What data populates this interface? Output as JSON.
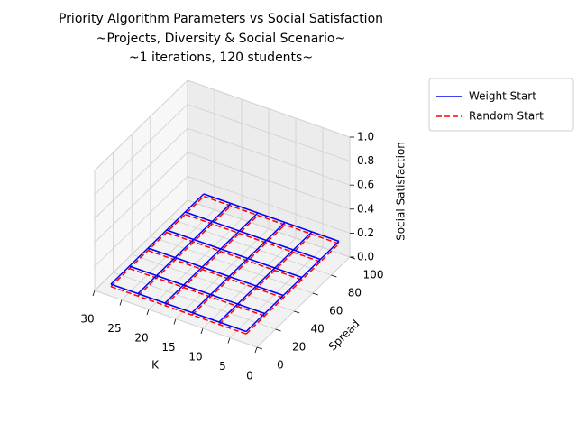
{
  "chart_data": {
    "type": "wireframe3d",
    "title": [
      "Priority Algorithm Parameters vs Social Satisfaction",
      "~Projects, Diversity & Social Scenario~",
      "~1 iterations, 120 students~"
    ],
    "xlabel": "K",
    "ylabel": "Spread",
    "zlabel": "Social Satisfaction",
    "x": [
      2,
      7,
      12,
      17,
      22,
      27
    ],
    "y": [
      0,
      20,
      40,
      60,
      80,
      100
    ],
    "xlim": [
      0,
      30
    ],
    "ylim": [
      0,
      100
    ],
    "zlim": [
      0,
      1
    ],
    "xticks": [
      0,
      5,
      10,
      15,
      20,
      25,
      30
    ],
    "yticks": [
      0,
      20,
      40,
      60,
      80,
      100
    ],
    "zticks": [
      {
        "value": 0,
        "label": "0.0"
      },
      {
        "value": 0.2,
        "label": "0.2"
      },
      {
        "value": 0.4,
        "label": "0.4"
      },
      {
        "value": 0.6,
        "label": "0.6"
      },
      {
        "value": 0.8,
        "label": "0.8"
      },
      {
        "value": 1,
        "label": "1.0"
      }
    ],
    "grid": true,
    "legend": "outside-upper-right",
    "series": [
      {
        "name": "Weight Start",
        "color": "#0000ff",
        "linestyle": "solid",
        "z": [
          [
            0.1,
            0.1,
            0.1,
            0.1,
            0.1,
            0.1
          ],
          [
            0.1,
            0.1,
            0.1,
            0.1,
            0.1,
            0.1
          ],
          [
            0.1,
            0.1,
            0.1,
            0.1,
            0.1,
            0.1
          ],
          [
            0.1,
            0.1,
            0.1,
            0.1,
            0.1,
            0.1
          ],
          [
            0.1,
            0.1,
            0.1,
            0.1,
            0.1,
            0.1
          ],
          [
            0.1,
            0.1,
            0.1,
            0.1,
            0.1,
            0.1
          ]
        ]
      },
      {
        "name": "Random Start",
        "color": "#ff0000",
        "linestyle": "dashed",
        "z": [
          [
            0.08,
            0.08,
            0.08,
            0.08,
            0.08,
            0.08
          ],
          [
            0.08,
            0.08,
            0.08,
            0.08,
            0.08,
            0.08
          ],
          [
            0.08,
            0.08,
            0.08,
            0.08,
            0.08,
            0.08
          ],
          [
            0.08,
            0.08,
            0.08,
            0.08,
            0.08,
            0.08
          ],
          [
            0.08,
            0.08,
            0.08,
            0.08,
            0.08,
            0.08
          ],
          [
            0.08,
            0.08,
            0.08,
            0.08,
            0.08,
            0.08
          ]
        ]
      }
    ]
  }
}
